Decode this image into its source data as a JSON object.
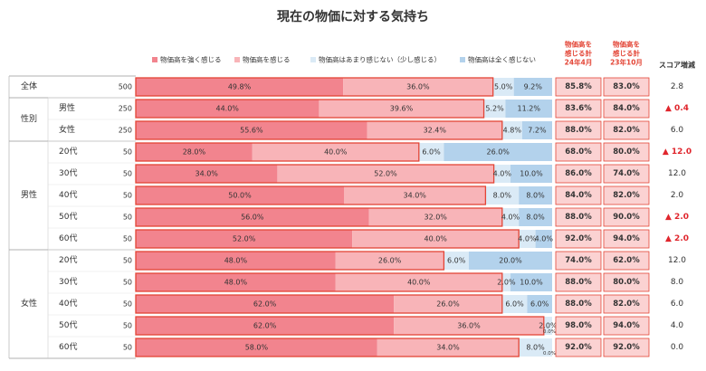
{
  "chart_data": {
    "type": "bar",
    "orientation": "horizontal",
    "stacked": true,
    "title": "現在の物価に対する気持ち",
    "legend": [
      {
        "label": "物価高を強く感じる",
        "color": "#f2848e"
      },
      {
        "label": "物価高を感じる",
        "color": "#f8b4b8"
      },
      {
        "label": "物価高はあまり感じない（少し感じる）",
        "color": "#daeaf6"
      },
      {
        "label": "物価高は全く感じない",
        "color": "#b3d2ec"
      }
    ],
    "summary_headers": {
      "col1": [
        "物価高を",
        "感じる計",
        "24年4月"
      ],
      "col2": [
        "物価高を",
        "感じる計",
        "23年10月"
      ],
      "col3": "スコア増減"
    },
    "groups": [
      {
        "label": "全体",
        "rows": [
          0
        ]
      },
      {
        "label": "性別",
        "rows": [
          1,
          2
        ]
      },
      {
        "label": "男性",
        "rows": [
          3,
          4,
          5,
          6,
          7
        ]
      },
      {
        "label": "女性",
        "rows": [
          8,
          9,
          10,
          11,
          12
        ]
      }
    ],
    "rows": [
      {
        "sub": "",
        "n": "500",
        "values": [
          49.8,
          36.0,
          5.0,
          9.2
        ],
        "labels": [
          "49.8%",
          "36.0%",
          "5.0%",
          "9.2%"
        ],
        "total_24": "85.8%",
        "total_23": "83.0%",
        "change": "2.8",
        "up": false
      },
      {
        "sub": "男性",
        "n": "250",
        "values": [
          44.0,
          39.6,
          5.2,
          11.2
        ],
        "labels": [
          "44.0%",
          "39.6%",
          "5.2%",
          "11.2%"
        ],
        "total_24": "83.6%",
        "total_23": "84.0%",
        "change": "▲ 0.4",
        "up": true
      },
      {
        "sub": "女性",
        "n": "250",
        "values": [
          55.6,
          32.4,
          4.8,
          7.2
        ],
        "labels": [
          "55.6%",
          "32.4%",
          "4.8%",
          "7.2%"
        ],
        "total_24": "88.0%",
        "total_23": "82.0%",
        "change": "6.0",
        "up": false
      },
      {
        "sub": "20代",
        "n": "50",
        "values": [
          28.0,
          40.0,
          6.0,
          26.0
        ],
        "labels": [
          "28.0%",
          "40.0%",
          "6.0%",
          "26.0%"
        ],
        "total_24": "68.0%",
        "total_23": "80.0%",
        "change": "▲ 12.0",
        "up": true
      },
      {
        "sub": "30代",
        "n": "50",
        "values": [
          34.0,
          52.0,
          4.0,
          10.0
        ],
        "labels": [
          "34.0%",
          "52.0%",
          "4.0%",
          "10.0%"
        ],
        "total_24": "86.0%",
        "total_23": "74.0%",
        "change": "12.0",
        "up": false
      },
      {
        "sub": "40代",
        "n": "50",
        "values": [
          50.0,
          34.0,
          8.0,
          8.0
        ],
        "labels": [
          "50.0%",
          "34.0%",
          "8.0%",
          "8.0%"
        ],
        "total_24": "84.0%",
        "total_23": "82.0%",
        "change": "2.0",
        "up": false
      },
      {
        "sub": "50代",
        "n": "50",
        "values": [
          56.0,
          32.0,
          4.0,
          8.0
        ],
        "labels": [
          "56.0%",
          "32.0%",
          "4.0%",
          "8.0%"
        ],
        "total_24": "88.0%",
        "total_23": "90.0%",
        "change": "▲ 2.0",
        "up": true
      },
      {
        "sub": "60代",
        "n": "50",
        "values": [
          52.0,
          40.0,
          4.0,
          4.0
        ],
        "labels": [
          "52.0%",
          "40.0%",
          "4.0%",
          "4.0%"
        ],
        "total_24": "92.0%",
        "total_23": "94.0%",
        "change": "▲ 2.0",
        "up": true
      },
      {
        "sub": "20代",
        "n": "50",
        "values": [
          48.0,
          26.0,
          6.0,
          20.0
        ],
        "labels": [
          "48.0%",
          "26.0%",
          "6.0%",
          "20.0%"
        ],
        "total_24": "74.0%",
        "total_23": "62.0%",
        "change": "12.0",
        "up": false
      },
      {
        "sub": "30代",
        "n": "50",
        "values": [
          48.0,
          40.0,
          2.0,
          10.0
        ],
        "labels": [
          "48.0%",
          "40.0%",
          "2.0%",
          "10.0%"
        ],
        "total_24": "88.0%",
        "total_23": "80.0%",
        "change": "8.0",
        "up": false
      },
      {
        "sub": "40代",
        "n": "50",
        "values": [
          62.0,
          26.0,
          6.0,
          6.0
        ],
        "labels": [
          "62.0%",
          "26.0%",
          "6.0%",
          "6.0%"
        ],
        "total_24": "88.0%",
        "total_23": "82.0%",
        "change": "6.0",
        "up": false
      },
      {
        "sub": "50代",
        "n": "50",
        "values": [
          62.0,
          36.0,
          2.0,
          0.0
        ],
        "labels": [
          "62.0%",
          "36.0%",
          "2.0%",
          "0.0%"
        ],
        "total_24": "98.0%",
        "total_23": "94.0%",
        "change": "4.0",
        "up": false
      },
      {
        "sub": "60代",
        "n": "50",
        "values": [
          58.0,
          34.0,
          8.0,
          0.0
        ],
        "labels": [
          "58.0%",
          "34.0%",
          "8.0%",
          "0.0%"
        ],
        "total_24": "92.0%",
        "total_23": "92.0%",
        "change": "0.0",
        "up": false
      }
    ],
    "xlim": [
      0,
      100
    ],
    "grid": false,
    "legend_position": "top"
  }
}
